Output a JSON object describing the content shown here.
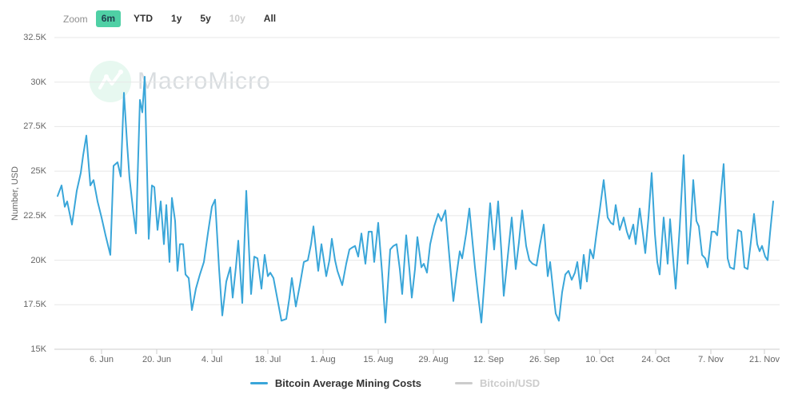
{
  "toolbar": {
    "zoom_label": "Zoom",
    "buttons": [
      {
        "label": "6m",
        "state": "selected"
      },
      {
        "label": "YTD",
        "state": "normal"
      },
      {
        "label": "1y",
        "state": "normal"
      },
      {
        "label": "5y",
        "state": "normal"
      },
      {
        "label": "10y",
        "state": "disabled"
      },
      {
        "label": "All",
        "state": "normal"
      }
    ]
  },
  "watermark": {
    "text": "MacroMicro"
  },
  "y_axis": {
    "title": "Number, USD",
    "ticks": [
      {
        "label": "15K",
        "value": 15
      },
      {
        "label": "17.5K",
        "value": 17.5
      },
      {
        "label": "20K",
        "value": 20
      },
      {
        "label": "22.5K",
        "value": 22.5
      },
      {
        "label": "25K",
        "value": 25
      },
      {
        "label": "27.5K",
        "value": 27.5
      },
      {
        "label": "30K",
        "value": 30
      },
      {
        "label": "32.5K",
        "value": 32.5
      }
    ]
  },
  "x_axis": {
    "ticks": [
      {
        "label": "6. Jun",
        "px": 127
      },
      {
        "label": "20. Jun",
        "px": 196
      },
      {
        "label": "4. Jul",
        "px": 265
      },
      {
        "label": "18. Jul",
        "px": 335
      },
      {
        "label": "1. Aug",
        "px": 404
      },
      {
        "label": "15. Aug",
        "px": 473
      },
      {
        "label": "29. Aug",
        "px": 542
      },
      {
        "label": "12. Sep",
        "px": 611
      },
      {
        "label": "26. Sep",
        "px": 681
      },
      {
        "label": "10. Oct",
        "px": 750
      },
      {
        "label": "24. Oct",
        "px": 820
      },
      {
        "label": "7. Nov",
        "px": 889
      },
      {
        "label": "21. Nov",
        "px": 956
      }
    ]
  },
  "legend": [
    {
      "label": "Bitcoin Average Mining Costs",
      "color": "#3aa6d9",
      "active": true
    },
    {
      "label": "Bitcoin/USD",
      "color": "#cccccc",
      "active": false
    }
  ],
  "colors": {
    "line": "#3aa6d9",
    "selected_button_bg": "#4fd0a5",
    "grid": "#e7e7e7",
    "axis_line": "#cccccc",
    "axis_text": "#666666",
    "disabled": "#cccccc",
    "watermark_circle": "#e7f8f0",
    "watermark_text": "#d9dde0"
  },
  "chart_data": {
    "type": "line",
    "ylabel": "Number, USD",
    "ylim": [
      15,
      32.5
    ],
    "y_unit": "K USD",
    "grid": "horizontal",
    "legend_position": "bottom-center",
    "x_tick_labels": [
      "6. Jun",
      "20. Jun",
      "4. Jul",
      "18. Jul",
      "1. Aug",
      "15. Aug",
      "29. Aug",
      "12. Sep",
      "26. Sep",
      "10. Oct",
      "24. Oct",
      "7. Nov",
      "21. Nov"
    ],
    "series": [
      {
        "name": "Bitcoin Average Mining Costs",
        "color": "#3aa6d9",
        "visible": true,
        "x_coord": "px (see x_axis.ticks for px-to-date mapping, ~4.95 px per day)",
        "points": [
          [
            72,
            23.6
          ],
          [
            77,
            24.2
          ],
          [
            81,
            23.0
          ],
          [
            84,
            23.3
          ],
          [
            90,
            22.0
          ],
          [
            96,
            23.9
          ],
          [
            101,
            24.9
          ],
          [
            104,
            25.9
          ],
          [
            108,
            27.0
          ],
          [
            113,
            24.2
          ],
          [
            117,
            24.5
          ],
          [
            122,
            23.3
          ],
          [
            127,
            22.4
          ],
          [
            132,
            21.4
          ],
          [
            138,
            20.3
          ],
          [
            142,
            25.3
          ],
          [
            147,
            25.5
          ],
          [
            151,
            24.7
          ],
          [
            155,
            29.4
          ],
          [
            159,
            26.5
          ],
          [
            162,
            24.6
          ],
          [
            166,
            23.0
          ],
          [
            170,
            21.5
          ],
          [
            175,
            29.0
          ],
          [
            178,
            28.3
          ],
          [
            181,
            30.3
          ],
          [
            186,
            21.2
          ],
          [
            190,
            24.2
          ],
          [
            193,
            24.1
          ],
          [
            197,
            21.7
          ],
          [
            201,
            23.3
          ],
          [
            205,
            20.9
          ],
          [
            208,
            23.1
          ],
          [
            212,
            19.9
          ],
          [
            215,
            23.5
          ],
          [
            219,
            22.2
          ],
          [
            222,
            19.4
          ],
          [
            225,
            20.9
          ],
          [
            229,
            20.9
          ],
          [
            232,
            19.2
          ],
          [
            236,
            19.0
          ],
          [
            240,
            17.2
          ],
          [
            245,
            18.4
          ],
          [
            250,
            19.2
          ],
          [
            255,
            19.9
          ],
          [
            260,
            21.5
          ],
          [
            265,
            23.0
          ],
          [
            269,
            23.4
          ],
          [
            274,
            19.5
          ],
          [
            278,
            16.9
          ],
          [
            283,
            18.8
          ],
          [
            288,
            19.6
          ],
          [
            291,
            17.9
          ],
          [
            295,
            19.6
          ],
          [
            298,
            21.1
          ],
          [
            303,
            17.6
          ],
          [
            308,
            23.9
          ],
          [
            314,
            18.1
          ],
          [
            318,
            20.2
          ],
          [
            322,
            20.1
          ],
          [
            327,
            18.4
          ],
          [
            331,
            20.3
          ],
          [
            335,
            19.1
          ],
          [
            338,
            19.3
          ],
          [
            342,
            19.0
          ],
          [
            347,
            17.8
          ],
          [
            352,
            16.6
          ],
          [
            358,
            16.7
          ],
          [
            362,
            17.9
          ],
          [
            365,
            19.0
          ],
          [
            370,
            17.4
          ],
          [
            375,
            18.6
          ],
          [
            380,
            19.9
          ],
          [
            385,
            20.0
          ],
          [
            389,
            20.9
          ],
          [
            392,
            21.9
          ],
          [
            398,
            19.4
          ],
          [
            402,
            20.9
          ],
          [
            408,
            19.1
          ],
          [
            412,
            20.0
          ],
          [
            415,
            21.2
          ],
          [
            419,
            20.0
          ],
          [
            422,
            19.4
          ],
          [
            428,
            18.6
          ],
          [
            433,
            19.8
          ],
          [
            437,
            20.6
          ],
          [
            440,
            20.7
          ],
          [
            444,
            20.8
          ],
          [
            448,
            20.2
          ],
          [
            452,
            21.5
          ],
          [
            457,
            19.8
          ],
          [
            461,
            21.6
          ],
          [
            465,
            21.6
          ],
          [
            468,
            19.9
          ],
          [
            473,
            22.1
          ],
          [
            478,
            19.2
          ],
          [
            482,
            16.5
          ],
          [
            488,
            20.6
          ],
          [
            492,
            20.8
          ],
          [
            496,
            20.9
          ],
          [
            500,
            19.5
          ],
          [
            503,
            18.1
          ],
          [
            508,
            21.4
          ],
          [
            512,
            19.5
          ],
          [
            515,
            17.9
          ],
          [
            519,
            19.5
          ],
          [
            522,
            21.3
          ],
          [
            527,
            19.6
          ],
          [
            530,
            19.8
          ],
          [
            534,
            19.3
          ],
          [
            538,
            20.9
          ],
          [
            543,
            21.9
          ],
          [
            548,
            22.6
          ],
          [
            552,
            22.2
          ],
          [
            557,
            22.8
          ],
          [
            562,
            20.2
          ],
          [
            567,
            17.7
          ],
          [
            571,
            19.2
          ],
          [
            575,
            20.5
          ],
          [
            578,
            20.1
          ],
          [
            583,
            21.5
          ],
          [
            587,
            22.9
          ],
          [
            591,
            21.0
          ],
          [
            594,
            19.6
          ],
          [
            598,
            18.0
          ],
          [
            602,
            16.5
          ],
          [
            607,
            19.5
          ],
          [
            613,
            23.2
          ],
          [
            618,
            20.6
          ],
          [
            623,
            23.3
          ],
          [
            627,
            20.5
          ],
          [
            630,
            18.0
          ],
          [
            635,
            20.2
          ],
          [
            640,
            22.4
          ],
          [
            645,
            19.5
          ],
          [
            649,
            21.0
          ],
          [
            653,
            22.8
          ],
          [
            658,
            20.8
          ],
          [
            662,
            20.0
          ],
          [
            666,
            19.8
          ],
          [
            671,
            19.7
          ],
          [
            675,
            20.8
          ],
          [
            680,
            22.0
          ],
          [
            685,
            19.1
          ],
          [
            688,
            19.9
          ],
          [
            692,
            18.2
          ],
          [
            695,
            17.0
          ],
          [
            699,
            16.6
          ],
          [
            703,
            18.2
          ],
          [
            707,
            19.2
          ],
          [
            711,
            19.4
          ],
          [
            715,
            18.9
          ],
          [
            719,
            19.3
          ],
          [
            722,
            19.9
          ],
          [
            726,
            18.4
          ],
          [
            730,
            20.3
          ],
          [
            734,
            18.8
          ],
          [
            738,
            20.6
          ],
          [
            742,
            20.1
          ],
          [
            746,
            21.5
          ],
          [
            750,
            22.8
          ],
          [
            755,
            24.5
          ],
          [
            760,
            22.4
          ],
          [
            764,
            22.1
          ],
          [
            767,
            22.0
          ],
          [
            770,
            23.1
          ],
          [
            775,
            21.7
          ],
          [
            780,
            22.4
          ],
          [
            784,
            21.6
          ],
          [
            787,
            21.2
          ],
          [
            792,
            22.0
          ],
          [
            795,
            20.9
          ],
          [
            800,
            22.9
          ],
          [
            804,
            21.5
          ],
          [
            807,
            20.4
          ],
          [
            811,
            22.4
          ],
          [
            815,
            24.9
          ],
          [
            819,
            21.5
          ],
          [
            822,
            19.9
          ],
          [
            825,
            19.2
          ],
          [
            830,
            22.4
          ],
          [
            835,
            19.8
          ],
          [
            838,
            22.3
          ],
          [
            842,
            20.0
          ],
          [
            845,
            18.4
          ],
          [
            850,
            21.8
          ],
          [
            855,
            25.9
          ],
          [
            860,
            19.8
          ],
          [
            864,
            22.0
          ],
          [
            867,
            24.5
          ],
          [
            871,
            22.2
          ],
          [
            874,
            21.9
          ],
          [
            878,
            20.3
          ],
          [
            882,
            20.1
          ],
          [
            885,
            19.6
          ],
          [
            890,
            21.6
          ],
          [
            894,
            21.6
          ],
          [
            897,
            21.4
          ],
          [
            901,
            23.4
          ],
          [
            905,
            25.4
          ],
          [
            910,
            20.1
          ],
          [
            913,
            19.6
          ],
          [
            918,
            19.5
          ],
          [
            923,
            21.7
          ],
          [
            927,
            21.6
          ],
          [
            931,
            19.6
          ],
          [
            935,
            19.5
          ],
          [
            939,
            21.0
          ],
          [
            943,
            22.6
          ],
          [
            947,
            20.9
          ],
          [
            950,
            20.5
          ],
          [
            953,
            20.8
          ],
          [
            957,
            20.2
          ],
          [
            960,
            20.0
          ],
          [
            963,
            21.5
          ],
          [
            967,
            23.3
          ]
        ]
      },
      {
        "name": "Bitcoin/USD",
        "color": "#cccccc",
        "visible": false,
        "points": []
      }
    ]
  }
}
